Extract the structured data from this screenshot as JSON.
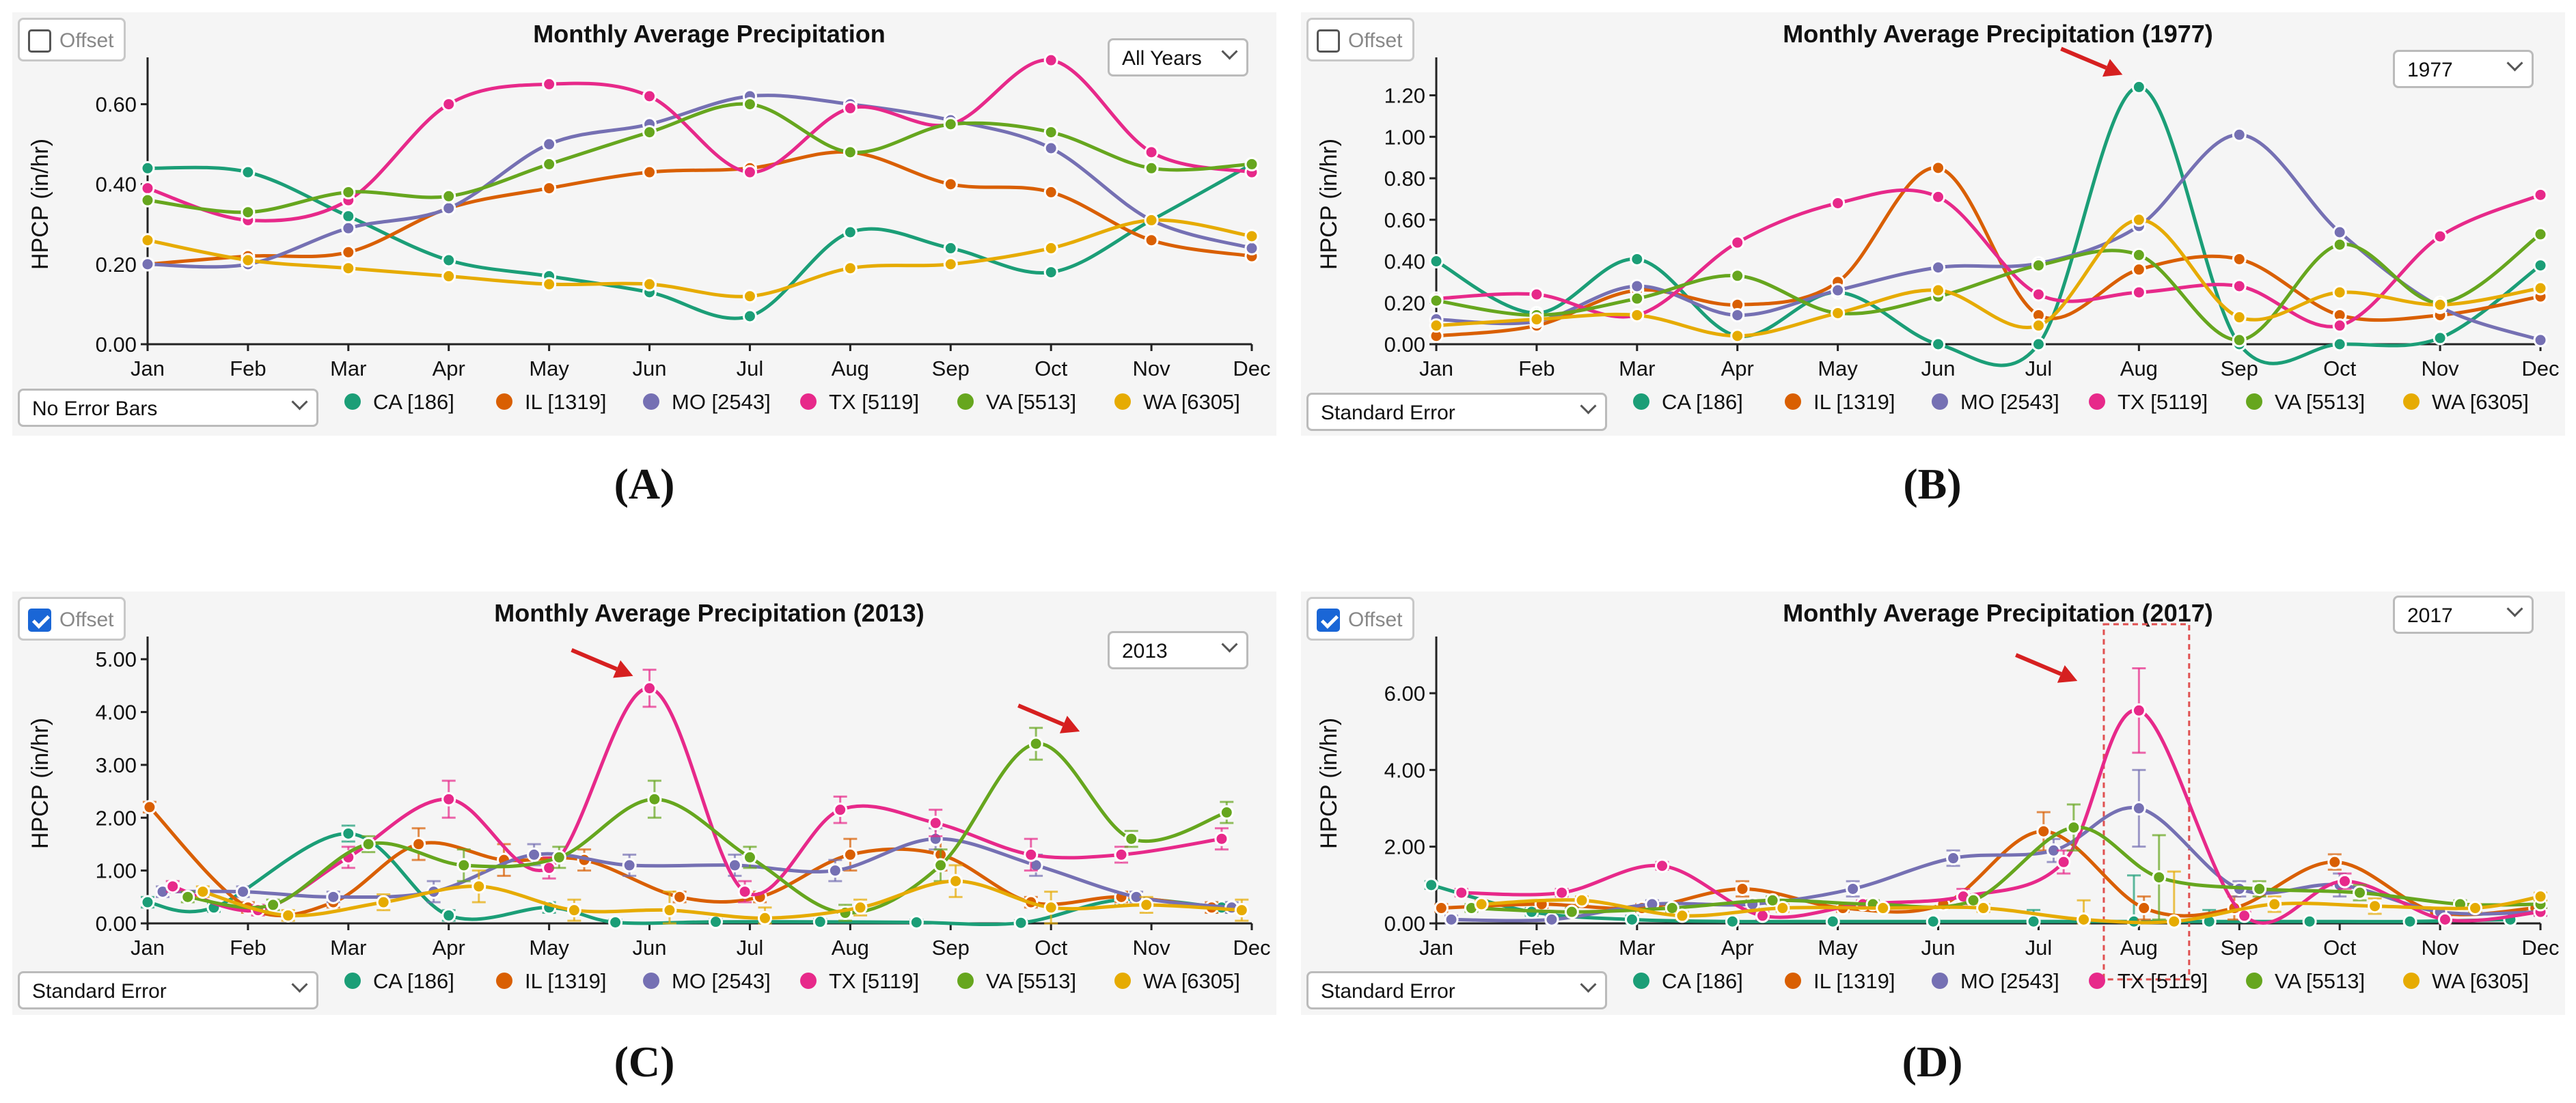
{
  "months": [
    "Jan",
    "Feb",
    "Mar",
    "Apr",
    "May",
    "Jun",
    "Jul",
    "Aug",
    "Sep",
    "Oct",
    "Nov",
    "Dec"
  ],
  "ylabel": "HPCP (in/hr)",
  "offset_label": "Offset",
  "colors": {
    "CA": "#1b9e77",
    "IL": "#d95f02",
    "MO": "#7570b3",
    "TX": "#e7298a",
    "VA": "#66a61e",
    "WA": "#e6ab02",
    "arrow": "#d62020"
  },
  "chart_data": [
    {
      "id": "A",
      "panel_label": "(A)",
      "type": "line",
      "title": "Monthly Average Precipitation",
      "year_select": "All Years",
      "error_select": "No Error Bars",
      "offset_checked": false,
      "ylim": [
        0,
        0.7
      ],
      "yticks": [
        "0.00",
        "0.20",
        "0.40",
        "0.60"
      ],
      "ytick_values": [
        0,
        0.2,
        0.4,
        0.6
      ],
      "error_bars": false,
      "series": [
        {
          "name": "CA [186]",
          "key": "CA",
          "values": [
            0.44,
            0.43,
            0.32,
            0.21,
            0.17,
            0.13,
            0.07,
            0.28,
            0.24,
            0.18,
            0.31,
            0.45
          ]
        },
        {
          "name": "IL [1319]",
          "key": "IL",
          "values": [
            0.2,
            0.22,
            0.23,
            0.34,
            0.39,
            0.43,
            0.44,
            0.48,
            0.4,
            0.38,
            0.26,
            0.22
          ]
        },
        {
          "name": "MO [2543]",
          "key": "MO",
          "values": [
            0.2,
            0.2,
            0.29,
            0.34,
            0.5,
            0.55,
            0.62,
            0.6,
            0.56,
            0.49,
            0.31,
            0.24
          ]
        },
        {
          "name": "TX [5119]",
          "key": "TX",
          "values": [
            0.39,
            0.31,
            0.36,
            0.6,
            0.65,
            0.62,
            0.43,
            0.59,
            0.55,
            0.71,
            0.48,
            0.43
          ]
        },
        {
          "name": "VA [5513]",
          "key": "VA",
          "values": [
            0.36,
            0.33,
            0.38,
            0.37,
            0.45,
            0.53,
            0.6,
            0.48,
            0.55,
            0.53,
            0.44,
            0.45
          ]
        },
        {
          "name": "WA [6305]",
          "key": "WA",
          "values": [
            0.26,
            0.21,
            0.19,
            0.17,
            0.15,
            0.15,
            0.12,
            0.19,
            0.2,
            0.24,
            0.31,
            0.27
          ]
        }
      ],
      "arrows": []
    },
    {
      "id": "B",
      "panel_label": "(B)",
      "type": "line",
      "title": "Monthly Average Precipitation (1977)",
      "year_select": "1977",
      "error_select": "Standard Error",
      "offset_checked": false,
      "ylim": [
        0,
        1.35
      ],
      "yticks": [
        "0.00",
        "0.20",
        "0.40",
        "0.60",
        "0.80",
        "1.00",
        "1.20"
      ],
      "ytick_values": [
        0,
        0.2,
        0.4,
        0.6,
        0.8,
        1.0,
        1.2
      ],
      "error_bars": false,
      "series": [
        {
          "name": "CA [186]",
          "key": "CA",
          "values": [
            0.4,
            0.15,
            0.41,
            0.04,
            0.25,
            0.0,
            0.0,
            1.24,
            0.0,
            0.0,
            0.03,
            0.38
          ]
        },
        {
          "name": "IL [1319]",
          "key": "IL",
          "values": [
            0.04,
            0.09,
            0.26,
            0.19,
            0.3,
            0.85,
            0.14,
            0.36,
            0.41,
            0.14,
            0.14,
            0.23
          ]
        },
        {
          "name": "MO [2543]",
          "key": "MO",
          "values": [
            0.12,
            0.11,
            0.28,
            0.14,
            0.26,
            0.37,
            0.39,
            0.57,
            1.01,
            0.54,
            0.18,
            0.02
          ]
        },
        {
          "name": "TX [5119]",
          "key": "TX",
          "values": [
            0.22,
            0.24,
            0.14,
            0.49,
            0.68,
            0.71,
            0.24,
            0.25,
            0.28,
            0.09,
            0.52,
            0.72
          ]
        },
        {
          "name": "VA [5513]",
          "key": "VA",
          "values": [
            0.21,
            0.14,
            0.22,
            0.33,
            0.15,
            0.23,
            0.38,
            0.43,
            0.02,
            0.48,
            0.2,
            0.53
          ]
        },
        {
          "name": "WA [6305]",
          "key": "WA",
          "values": [
            0.09,
            0.12,
            0.14,
            0.04,
            0.15,
            0.26,
            0.09,
            0.6,
            0.13,
            0.25,
            0.19,
            0.27
          ]
        }
      ],
      "arrows": [
        {
          "month": 7,
          "value": 1.24
        }
      ]
    },
    {
      "id": "C",
      "panel_label": "(C)",
      "type": "line",
      "title": "Monthly Average Precipitation (2013)",
      "year_select": "2013",
      "error_select": "Standard Error",
      "offset_checked": true,
      "ylim": [
        0,
        5.3
      ],
      "yticks": [
        "0.00",
        "1.00",
        "2.00",
        "3.00",
        "4.00",
        "5.00"
      ],
      "ytick_values": [
        0,
        1,
        2,
        3,
        4,
        5
      ],
      "error_bars": true,
      "series": [
        {
          "name": "CA [186]",
          "key": "CA",
          "x": [
            0.0,
            0.66,
            2.0,
            3.0,
            4.0,
            4.66,
            5.66,
            6.7,
            7.66,
            8.7,
            9.7,
            10.7
          ],
          "values": [
            0.4,
            0.3,
            1.7,
            0.15,
            0.3,
            0.02,
            0.03,
            0.03,
            0.02,
            0.01,
            0.45,
            0.3
          ],
          "err": [
            0.1,
            0.08,
            0.15,
            0.1,
            0.1,
            0.05,
            0.05,
            0.05,
            0.05,
            0.05,
            0.1,
            0.1
          ]
        },
        {
          "name": "IL [1319]",
          "key": "IL",
          "x": [
            0.02,
            1.0,
            1.85,
            2.7,
            3.55,
            4.35,
            5.3,
            6.1,
            7.0,
            7.9,
            8.8,
            9.7,
            10.6
          ],
          "values": [
            2.2,
            0.3,
            0.4,
            1.5,
            1.2,
            1.2,
            0.5,
            0.5,
            1.3,
            1.3,
            0.4,
            0.5,
            0.3
          ],
          "err": [
            0.1,
            0.1,
            0.1,
            0.3,
            0.3,
            0.2,
            0.1,
            0.1,
            0.3,
            0.3,
            0.1,
            0.1,
            0.1
          ]
        },
        {
          "name": "MO [2543]",
          "key": "MO",
          "x": [
            0.15,
            0.95,
            1.85,
            2.85,
            3.85,
            4.8,
            5.85,
            6.85,
            7.85,
            8.85,
            9.85,
            10.8
          ],
          "values": [
            0.6,
            0.6,
            0.5,
            0.6,
            1.3,
            1.1,
            1.1,
            1.0,
            1.6,
            1.1,
            0.5,
            0.3
          ],
          "err": [
            0.1,
            0.1,
            0.1,
            0.2,
            0.2,
            0.2,
            0.2,
            0.2,
            0.2,
            0.2,
            0.1,
            0.1
          ]
        },
        {
          "name": "TX [5119]",
          "key": "TX",
          "x": [
            0.25,
            1.1,
            2.0,
            3.0,
            4.0,
            5.0,
            5.95,
            6.9,
            7.85,
            8.8,
            9.7,
            10.7
          ],
          "values": [
            0.7,
            0.25,
            1.25,
            2.35,
            1.05,
            4.45,
            0.6,
            2.15,
            1.9,
            1.3,
            1.3,
            1.6
          ],
          "err": [
            0.1,
            0.1,
            0.2,
            0.35,
            0.2,
            0.35,
            0.2,
            0.25,
            0.25,
            0.3,
            0.15,
            0.2
          ]
        },
        {
          "name": "VA [5513]",
          "key": "VA",
          "x": [
            0.4,
            1.25,
            2.2,
            3.15,
            4.1,
            5.05,
            6.0,
            6.95,
            7.9,
            8.85,
            9.8,
            10.75
          ],
          "values": [
            0.5,
            0.35,
            1.5,
            1.1,
            1.25,
            2.35,
            1.25,
            0.2,
            1.1,
            3.4,
            1.6,
            2.1
          ],
          "err": [
            0.1,
            0.1,
            0.15,
            0.3,
            0.2,
            0.35,
            0.2,
            0.15,
            0.3,
            0.3,
            0.15,
            0.2
          ]
        },
        {
          "name": "WA [6305]",
          "key": "WA",
          "x": [
            0.55,
            1.4,
            2.35,
            3.3,
            4.25,
            5.2,
            6.15,
            7.1,
            8.05,
            9.0,
            9.95,
            10.9
          ],
          "values": [
            0.6,
            0.15,
            0.4,
            0.7,
            0.25,
            0.25,
            0.1,
            0.3,
            0.8,
            0.3,
            0.35,
            0.25
          ],
          "err": [
            0.1,
            0.1,
            0.15,
            0.3,
            0.2,
            0.35,
            0.2,
            0.15,
            0.3,
            0.3,
            0.15,
            0.2
          ]
        }
      ],
      "arrows": [
        {
          "month": 5.0,
          "value": 4.45
        },
        {
          "month": 9.45,
          "value": 3.4
        }
      ]
    },
    {
      "id": "D",
      "panel_label": "(D)",
      "type": "line",
      "title": "Monthly Average Precipitation (2017)",
      "year_select": "2017",
      "error_select": "Standard Error",
      "offset_checked": true,
      "ylim": [
        0,
        7.3
      ],
      "yticks": [
        "0.00",
        "2.00",
        "4.00",
        "6.00"
      ],
      "ytick_values": [
        0,
        2,
        4,
        6
      ],
      "error_bars": true,
      "series": [
        {
          "name": "CA [186]",
          "key": "CA",
          "x": [
            -0.05,
            0.95,
            1.95,
            2.95,
            3.95,
            4.95,
            5.95,
            6.95,
            7.7,
            8.7,
            9.7,
            10.7
          ],
          "values": [
            1.0,
            0.3,
            0.1,
            0.05,
            0.05,
            0.05,
            0.05,
            0.05,
            0.05,
            0.05,
            0.05,
            0.1
          ],
          "err": [
            0.1,
            0.1,
            0.1,
            0.05,
            0.05,
            0.05,
            0.3,
            1.2,
            0.3,
            0.05,
            0.05,
            0.05
          ]
        },
        {
          "name": "IL [1319]",
          "key": "IL",
          "x": [
            0.05,
            1.05,
            2.05,
            3.05,
            4.05,
            5.05,
            6.05,
            7.05,
            7.95,
            8.95,
            9.95,
            10.95
          ],
          "values": [
            0.4,
            0.5,
            0.4,
            0.9,
            0.4,
            0.5,
            2.4,
            0.4,
            0.4,
            1.6,
            0.3,
            0.4
          ],
          "err": [
            0.1,
            0.1,
            0.1,
            0.2,
            0.1,
            0.1,
            0.5,
            0.3,
            0.3,
            0.2,
            0.1,
            0.1
          ]
        },
        {
          "name": "MO [2543]",
          "key": "MO",
          "x": [
            0.15,
            1.15,
            2.15,
            3.15,
            4.15,
            5.15,
            6.15,
            7.0,
            8.0,
            9.0,
            10.0,
            11.0
          ],
          "values": [
            0.1,
            0.1,
            0.5,
            0.5,
            0.9,
            1.7,
            1.9,
            3.0,
            0.9,
            1.0,
            0.3,
            0.3
          ],
          "err": [
            0.1,
            0.1,
            0.1,
            0.1,
            0.2,
            0.2,
            0.3,
            1.0,
            0.2,
            0.3,
            0.1,
            0.1
          ]
        },
        {
          "name": "TX [5119]",
          "key": "TX",
          "x": [
            0.25,
            1.25,
            2.25,
            3.25,
            4.25,
            5.25,
            6.25,
            7.0,
            8.05,
            9.05,
            10.05,
            11.0
          ],
          "values": [
            0.8,
            0.8,
            1.5,
            0.2,
            0.5,
            0.7,
            1.6,
            5.55,
            0.2,
            1.1,
            0.1,
            0.3
          ],
          "err": [
            0.1,
            0.1,
            0.1,
            0.1,
            0.1,
            0.2,
            0.3,
            1.1,
            0.1,
            0.2,
            0.1,
            0.1
          ]
        },
        {
          "name": "VA [5513]",
          "key": "VA",
          "x": [
            0.35,
            1.35,
            2.35,
            3.35,
            4.35,
            5.35,
            6.35,
            7.2,
            8.2,
            9.2,
            10.2,
            11.0
          ],
          "values": [
            0.4,
            0.3,
            0.4,
            0.6,
            0.5,
            0.6,
            2.5,
            1.2,
            0.9,
            0.8,
            0.5,
            0.5
          ],
          "err": [
            0.1,
            0.1,
            0.1,
            0.1,
            0.1,
            0.1,
            0.6,
            1.1,
            0.2,
            0.2,
            0.1,
            0.1
          ]
        },
        {
          "name": "WA [6305]",
          "key": "WA",
          "x": [
            0.45,
            1.45,
            2.45,
            3.45,
            4.45,
            5.45,
            6.45,
            7.35,
            8.35,
            9.35,
            10.35,
            11.0
          ],
          "values": [
            0.5,
            0.6,
            0.2,
            0.4,
            0.4,
            0.4,
            0.1,
            0.05,
            0.5,
            0.45,
            0.4,
            0.7
          ],
          "err": [
            0.1,
            0.1,
            0.1,
            0.1,
            0.1,
            0.1,
            0.5,
            1.3,
            0.2,
            0.2,
            0.1,
            0.1
          ]
        }
      ],
      "arrows": [
        {
          "month": 6.55,
          "value": 6.0
        }
      ],
      "highlight": {
        "from": 6.65,
        "to": 7.5
      }
    }
  ]
}
